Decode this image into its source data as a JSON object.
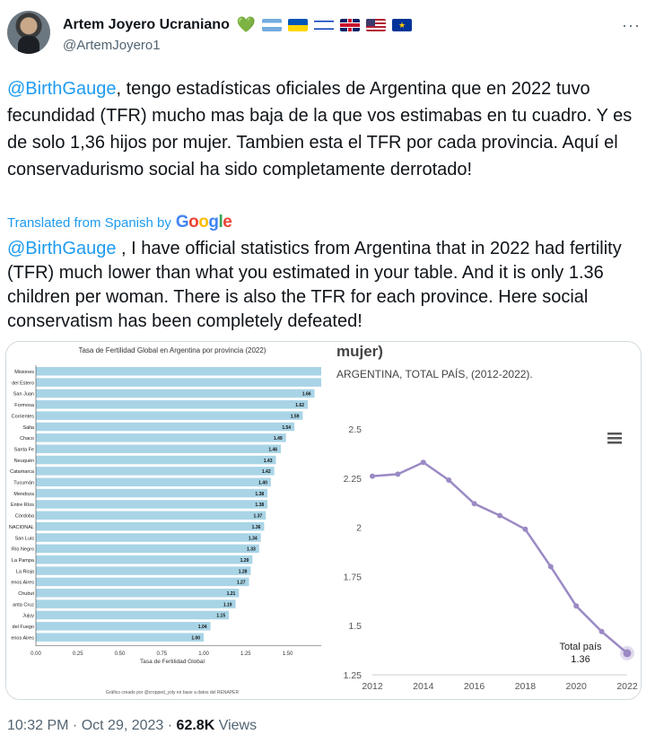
{
  "author": {
    "display_name": "Artem Joyero Ucraniano",
    "handle": "@ArtemJoyero1",
    "heart": "💚",
    "eu_stars": "★"
  },
  "tweet": {
    "mention": "@BirthGauge",
    "text": ", tengo estadísticas oficiales de Argentina que en 2022 tuvo fecundidad (TFR) mucho mas baja de la que vos estimabas en tu cuadro. Y es de solo 1,36 hijos por mujer. Tambien esta el TFR por cada provincia. Aquí el conservadurismo social ha sido completamente derrotado!",
    "translated_label": "Translated from Spanish by",
    "google": [
      "G",
      "o",
      "o",
      "g",
      "l",
      "e"
    ],
    "translation_mention": "@BirthGauge",
    "translation_text": " , I have official statistics from Argentina that in 2022 had fertility (TFR) much lower than what you estimated in your table. And it is only 1.36 children per woman. There is also the TFR for each province. Here social conservatism has been completely defeated!"
  },
  "footer": {
    "time": "10:32 PM · Oct 29, 2023 · ",
    "views_count": "62.8K",
    "views_label": " Views"
  },
  "chart_data": [
    {
      "type": "bar",
      "orientation": "horizontal",
      "title": "Tasa de Fertilidad Global en Argentina por provincia (2022)",
      "xlabel": "Tasa de Fertilidad Global",
      "caption": "Gráfico creado por @cropped_yoly en base a datos del RENAPER",
      "xlim": [
        0,
        1.7
      ],
      "xticks": [
        "0.00",
        "0.25",
        "0.50",
        "0.75",
        "1.00",
        "1.25",
        "1.50"
      ],
      "categories": [
        "Misiones",
        "del Estero",
        "San Juan",
        "Formosa",
        "Corrientes",
        "Salta",
        "Chaco",
        "Santa Fe",
        "Neuquén",
        "Catamarca",
        "Tucumán",
        "Mendoza",
        "Entre Ríos",
        "Córdoba",
        "NACIONAL",
        "San Luis",
        "Río Negro",
        "La Pampa",
        "La Rioja",
        "enos Aires",
        "Chubut",
        "anta Cruz",
        "Jujuy",
        "del Fuego",
        "enos Aires"
      ],
      "values": [
        1.7,
        1.7,
        1.66,
        1.62,
        1.59,
        1.54,
        1.49,
        1.46,
        1.43,
        1.42,
        1.4,
        1.38,
        1.38,
        1.37,
        1.36,
        1.34,
        1.33,
        1.29,
        1.28,
        1.27,
        1.21,
        1.19,
        1.15,
        1.04,
        1.0
      ],
      "labels": [
        "",
        "",
        "1.66",
        "1.62",
        "1.59",
        "1.54",
        "1.49",
        "1.46",
        "1.43",
        "1.42",
        "1.40",
        "1.38",
        "1.38",
        "1.37",
        "1.36",
        "1.34",
        "1.33",
        "1.29",
        "1.28",
        "1.27",
        "1.21",
        "1.19",
        "1.15",
        "1.04",
        "1.00"
      ],
      "bar_color": "#a8d4e6"
    },
    {
      "type": "line",
      "title": "mujer)",
      "subtitle": "ARGENTINA, TOTAL PAÍS, (2012-2022).",
      "x": [
        2012,
        2013,
        2014,
        2015,
        2016,
        2017,
        2018,
        2019,
        2020,
        2021,
        2022
      ],
      "y": [
        2.26,
        2.27,
        2.33,
        2.24,
        2.12,
        2.06,
        1.99,
        1.8,
        1.6,
        1.47,
        1.36
      ],
      "xticks": [
        "2012",
        "2014",
        "2016",
        "2018",
        "2020",
        "2022"
      ],
      "yticks": [
        "2.5",
        "2.25",
        "2",
        "1.75",
        "1.5",
        "1.25"
      ],
      "ylim": [
        1.25,
        2.5
      ],
      "annotation_label": "Total país",
      "annotation_value": "1.36",
      "line_color": "#9b8ac4"
    }
  ]
}
